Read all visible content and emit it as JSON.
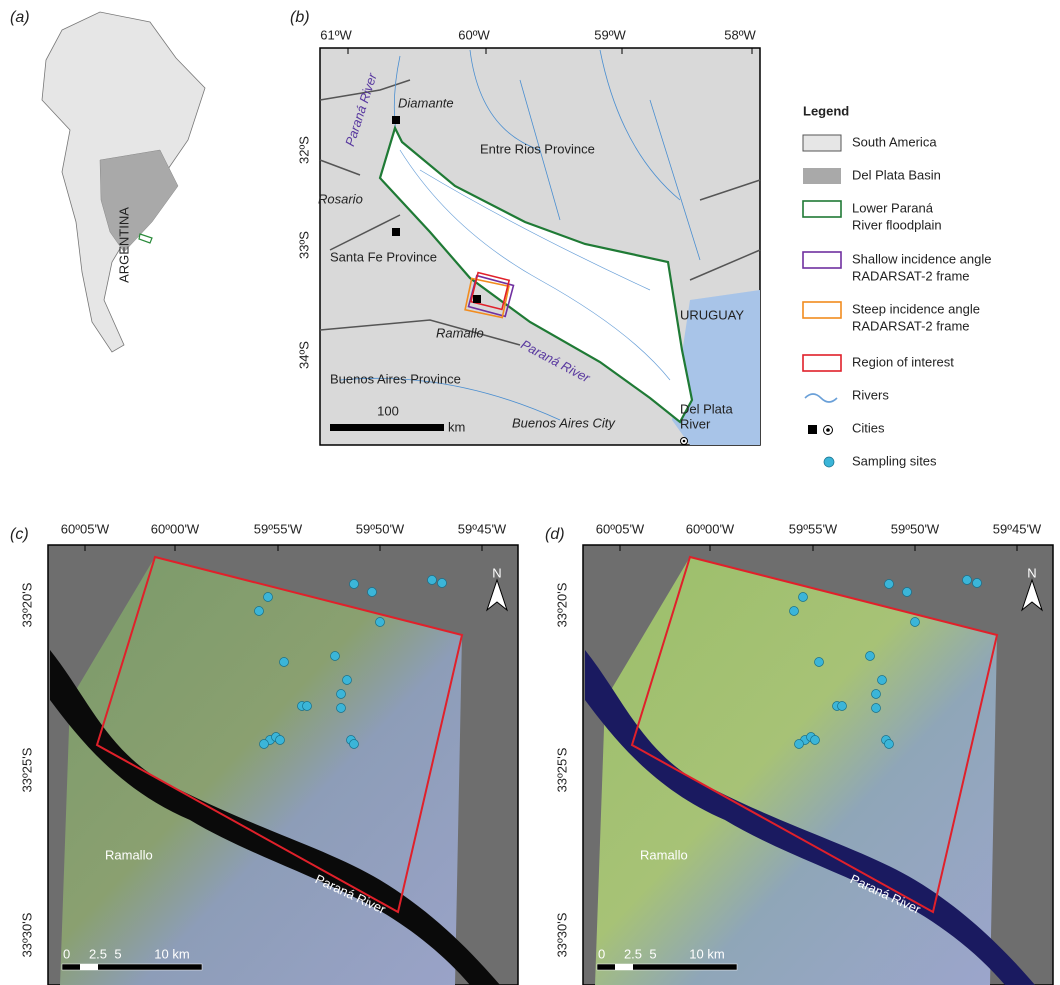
{
  "panels": {
    "a": {
      "label": "(a)",
      "country": "ARGENTINA"
    },
    "b": {
      "label": "(b)",
      "lon_ticks": [
        "61ºW",
        "60ºW",
        "59ºW",
        "58ºW"
      ],
      "lat_ticks": [
        "32ºS",
        "33ºS",
        "34ºS"
      ],
      "places": [
        "Diamante",
        "Entre Rios Province",
        "Paraná River",
        "Rosario",
        "Santa Fe Province",
        "Ramallo",
        "Paraná River",
        "URUGUAY",
        "Buenos Aires Province",
        "Buenos Aires City",
        "Del Plata",
        "River"
      ],
      "scale": [
        "100",
        "km"
      ]
    },
    "c": {
      "label": "(c)",
      "lon_ticks": [
        "60º05'W",
        "60º00'W",
        "59º55'W",
        "59º50'W",
        "59º45'W"
      ],
      "lat_ticks": [
        "33º20'S",
        "33º25'S",
        "33º30'S"
      ],
      "places": [
        "Ramallo",
        "Paraná River"
      ],
      "scale": [
        "0",
        "2.5",
        "5",
        "10 km"
      ],
      "north": "N"
    },
    "d": {
      "label": "(d)",
      "lon_ticks": [
        "60º05'W",
        "60º00'W",
        "59º55'W",
        "59º50'W",
        "59º45'W"
      ],
      "lat_ticks": [
        "33º20'S",
        "33º25'S",
        "33º30'S"
      ],
      "places": [
        "Ramallo",
        "Paraná River"
      ],
      "scale": [
        "0",
        "2.5",
        "5",
        "10 km"
      ],
      "north": "N"
    }
  },
  "legend": {
    "title": "Legend",
    "items": [
      [
        "South America"
      ],
      [
        "Del Plata Basin"
      ],
      [
        "Lower Paraná",
        "River floodplain"
      ],
      [
        "Shallow incidence angle",
        "RADARSAT-2 frame"
      ],
      [
        "Steep incidence angle",
        "RADARSAT-2 frame"
      ],
      [
        "Region of interest"
      ],
      [
        "Rivers"
      ],
      [
        "Cities"
      ],
      [
        "Sampling sites"
      ]
    ]
  }
}
